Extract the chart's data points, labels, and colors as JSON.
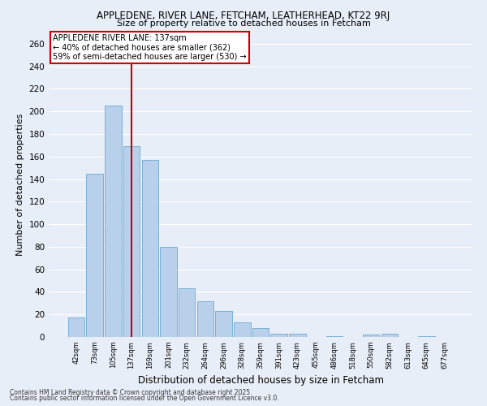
{
  "title1": "APPLEDENE, RIVER LANE, FETCHAM, LEATHERHEAD, KT22 9RJ",
  "title2": "Size of property relative to detached houses in Fetcham",
  "xlabel": "Distribution of detached houses by size in Fetcham",
  "ylabel": "Number of detached properties",
  "categories": [
    "42sqm",
    "73sqm",
    "105sqm",
    "137sqm",
    "169sqm",
    "201sqm",
    "232sqm",
    "264sqm",
    "296sqm",
    "328sqm",
    "359sqm",
    "391sqm",
    "423sqm",
    "455sqm",
    "486sqm",
    "518sqm",
    "550sqm",
    "582sqm",
    "613sqm",
    "645sqm",
    "677sqm"
  ],
  "values": [
    17,
    145,
    205,
    169,
    157,
    80,
    43,
    32,
    23,
    13,
    8,
    3,
    3,
    0,
    1,
    0,
    2,
    3,
    0,
    1,
    0
  ],
  "bar_color": "#b8d0ea",
  "bar_edge_color": "#6aaad4",
  "red_line_index": 3,
  "annotation_title": "APPLEDENE RIVER LANE: 137sqm",
  "annotation_line1": "← 40% of detached houses are smaller (362)",
  "annotation_line2": "59% of semi-detached houses are larger (530) →",
  "red_line_color": "#cc0000",
  "ylim": [
    0,
    270
  ],
  "yticks": [
    0,
    20,
    40,
    60,
    80,
    100,
    120,
    140,
    160,
    180,
    200,
    220,
    240,
    260
  ],
  "bg_color": "#e8eef8",
  "grid_color": "#ffffff",
  "footer1": "Contains HM Land Registry data © Crown copyright and database right 2025.",
  "footer2": "Contains public sector information licensed under the Open Government Licence v3.0."
}
